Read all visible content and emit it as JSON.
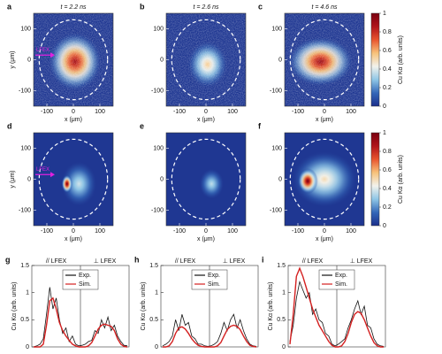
{
  "chart_data": [
    {
      "type": "heatmap",
      "panel": "a",
      "title": "t = 2.2 ns",
      "xlabel": "x (μm)",
      "ylabel": "y (μm)",
      "annotation": "LFEX",
      "xlim": [
        -150,
        150
      ],
      "ylim": [
        -150,
        150
      ],
      "xticks": [
        -100,
        0,
        100
      ],
      "yticks": [
        -100,
        0,
        100
      ]
    },
    {
      "type": "heatmap",
      "panel": "b",
      "title": "t = 2.6 ns",
      "xlabel": "x (μm)",
      "xlim": [
        -150,
        150
      ],
      "ylim": [
        -150,
        150
      ],
      "xticks": [
        -100,
        0,
        100
      ],
      "yticks": [
        -100,
        0,
        100
      ]
    },
    {
      "type": "heatmap",
      "panel": "c",
      "title": "t = 4.6 ns",
      "xlabel": "x (μm)",
      "xlim": [
        -150,
        150
      ],
      "ylim": [
        -150,
        150
      ],
      "xticks": [
        -100,
        0,
        100
      ],
      "yticks": [
        -100,
        0,
        100
      ],
      "zlim": [
        0,
        1
      ],
      "zticks": [
        0,
        0.2,
        0.4,
        0.6,
        0.8,
        1
      ],
      "zlabel": "Cu Kα (arb. units)",
      "colormap": [
        "#1b2f8c",
        "#3568b8",
        "#8fc6e6",
        "#f2f2ec",
        "#f7c27a",
        "#e8552e",
        "#b0141a",
        "#7a0010"
      ]
    },
    {
      "type": "heatmap",
      "panel": "d",
      "xlabel": "x (μm)",
      "ylabel": "y (μm)",
      "annotation": "LFEX",
      "xlim": [
        -150,
        150
      ],
      "ylim": [
        -150,
        150
      ],
      "xticks": [
        -100,
        0,
        100
      ],
      "yticks": [
        -100,
        0,
        100
      ]
    },
    {
      "type": "heatmap",
      "panel": "e",
      "xlabel": "x (μm)",
      "xlim": [
        -150,
        150
      ],
      "ylim": [
        -150,
        150
      ],
      "xticks": [
        -100,
        0,
        100
      ],
      "yticks": [
        -100,
        0,
        100
      ]
    },
    {
      "type": "heatmap",
      "panel": "f",
      "xlabel": "x (μm)",
      "xlim": [
        -150,
        150
      ],
      "ylim": [
        -150,
        150
      ],
      "xticks": [
        -100,
        0,
        100
      ],
      "yticks": [
        -100,
        0,
        100
      ],
      "zlim": [
        0,
        1
      ],
      "zticks": [
        0,
        0.2,
        0.4,
        0.6,
        0.8,
        1
      ],
      "zlabel": "Cu Kα (arb. units)",
      "colormap": [
        "#1b2f8c",
        "#3568b8",
        "#8fc6e6",
        "#f2f2ec",
        "#f7c27a",
        "#e8552e",
        "#b0141a",
        "#7a0010"
      ]
    },
    {
      "type": "line",
      "panel": "g",
      "ylabel": "Cu Kα (arb. units)",
      "section_labels": [
        "// LFEX",
        "⊥ LFEX"
      ],
      "ylim": [
        0,
        1.5
      ],
      "yticks": [
        0,
        0.5,
        1,
        1.5
      ],
      "legend": "top",
      "series": [
        {
          "name": "Exp.",
          "color": "#111111",
          "values": [
            0,
            0.02,
            0.05,
            0.15,
            0.6,
            1.1,
            0.7,
            0.9,
            0.5,
            0.25,
            0.35,
            0.1,
            0.2,
            0.05,
            0.02,
            0.03,
            0.05,
            0.1,
            0.12,
            0.3,
            0.25,
            0.5,
            0.35,
            0.55,
            0.3,
            0.4,
            0.2,
            0.1,
            0.03,
            0.02
          ]
        },
        {
          "name": "Sim.",
          "color": "#d42020",
          "values": [
            0,
            0,
            0,
            0.05,
            0.4,
            0.85,
            0.9,
            0.7,
            0.45,
            0.3,
            0.2,
            0.12,
            0.05,
            0.02,
            0,
            0,
            0,
            0.02,
            0.08,
            0.2,
            0.33,
            0.4,
            0.42,
            0.4,
            0.38,
            0.3,
            0.15,
            0.05,
            0.01,
            0
          ]
        }
      ]
    },
    {
      "type": "line",
      "panel": "h",
      "ylabel": "Cu Kα (arb. units)",
      "section_labels": [
        "// LFEX",
        "⊥ LFEX"
      ],
      "ylim": [
        0,
        1.5
      ],
      "yticks": [
        0,
        0.5,
        1,
        1.5
      ],
      "legend": "top",
      "series": [
        {
          "name": "Exp.",
          "color": "#111111",
          "values": [
            0.02,
            0.05,
            0.1,
            0.2,
            0.5,
            0.3,
            0.6,
            0.4,
            0.45,
            0.2,
            0.15,
            0.05,
            0.05,
            0.02,
            0.01,
            0.02,
            0.05,
            0.1,
            0.25,
            0.45,
            0.3,
            0.5,
            0.6,
            0.35,
            0.5,
            0.3,
            0.15,
            0.05,
            0.02,
            0.01
          ]
        },
        {
          "name": "Sim.",
          "color": "#d42020",
          "values": [
            0,
            0,
            0.02,
            0.1,
            0.25,
            0.35,
            0.37,
            0.33,
            0.25,
            0.15,
            0.08,
            0.03,
            0.01,
            0,
            0,
            0,
            0,
            0.02,
            0.08,
            0.2,
            0.32,
            0.38,
            0.4,
            0.38,
            0.32,
            0.2,
            0.1,
            0.03,
            0.01,
            0
          ]
        }
      ]
    },
    {
      "type": "line",
      "panel": "i",
      "ylabel": "Cu Kα (arb. units)",
      "section_labels": [
        "// LFEX",
        "⊥ LFEX"
      ],
      "ylim": [
        0,
        1.5
      ],
      "yticks": [
        0,
        0.5,
        1,
        1.5
      ],
      "legend": "top",
      "series": [
        {
          "name": "Exp.",
          "color": "#111111",
          "values": [
            0.1,
            0.4,
            0.9,
            1.2,
            1.05,
            0.9,
            1.0,
            0.6,
            0.7,
            0.5,
            0.45,
            0.25,
            0.2,
            0.05,
            0.02,
            0.05,
            0.1,
            0.15,
            0.35,
            0.5,
            0.7,
            0.85,
            0.6,
            0.75,
            0.4,
            0.35,
            0.15,
            0.05,
            0.02,
            0.01
          ]
        },
        {
          "name": "Sim.",
          "color": "#d42020",
          "values": [
            0.05,
            0.6,
            1.3,
            1.45,
            1.3,
            1.1,
            0.9,
            0.7,
            0.55,
            0.4,
            0.3,
            0.2,
            0.1,
            0.03,
            0,
            0,
            0.02,
            0.1,
            0.25,
            0.45,
            0.6,
            0.65,
            0.62,
            0.5,
            0.35,
            0.2,
            0.08,
            0.02,
            0,
            0
          ]
        }
      ]
    }
  ]
}
